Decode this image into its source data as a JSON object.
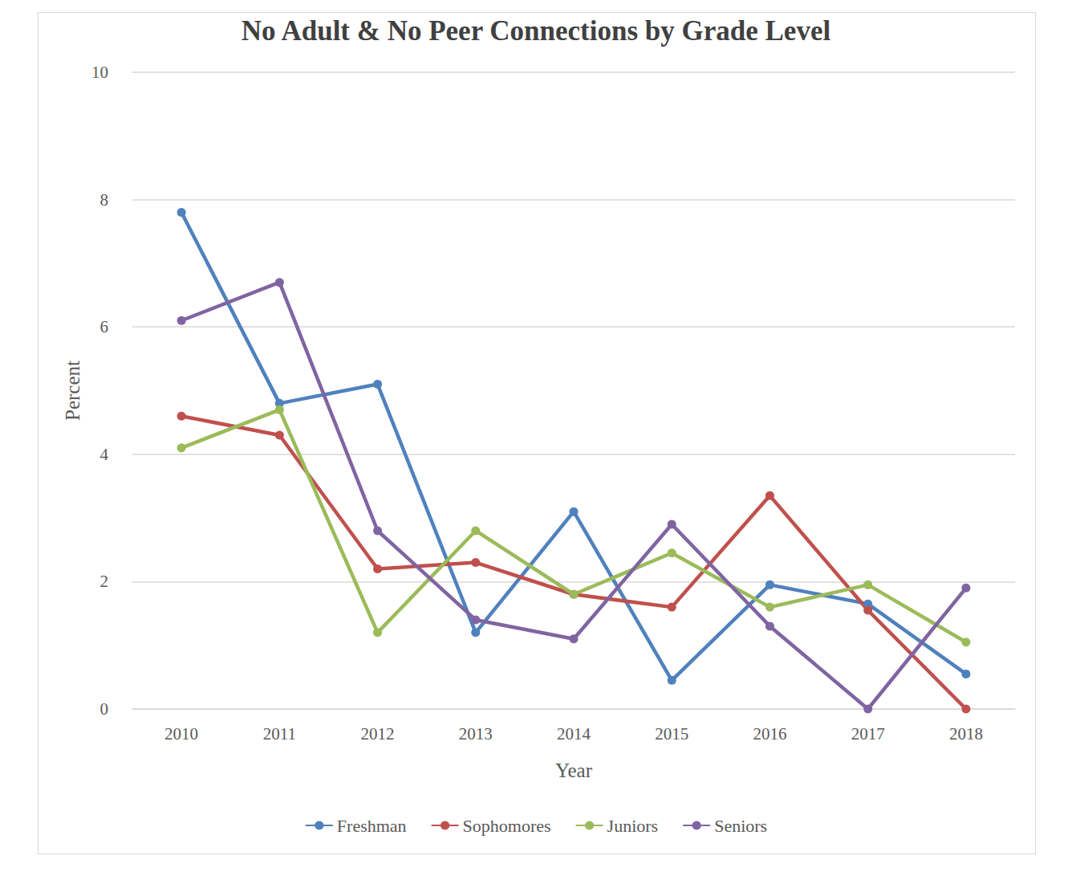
{
  "chart_data": {
    "type": "line",
    "title": "No Adult & No Peer Connections by Grade Level",
    "x_label": "Year",
    "y_label": "Percent",
    "categories": [
      "2010",
      "2011",
      "2012",
      "2013",
      "2014",
      "2015",
      "2016",
      "2017",
      "2018"
    ],
    "series": [
      {
        "name": "Freshman",
        "color": "#4f81bd",
        "values": [
          7.8,
          4.8,
          5.1,
          1.2,
          3.1,
          0.45,
          1.95,
          1.65,
          0.55
        ]
      },
      {
        "name": "Sophomores",
        "color": "#c0504d",
        "values": [
          4.6,
          4.3,
          2.2,
          2.3,
          1.8,
          1.6,
          3.35,
          1.55,
          0
        ]
      },
      {
        "name": "Juniors",
        "color": "#9bbb59",
        "values": [
          4.1,
          4.7,
          1.2,
          2.8,
          1.8,
          2.45,
          1.6,
          1.95,
          1.05
        ]
      },
      {
        "name": "Seniors",
        "color": "#8064a2",
        "values": [
          6.1,
          6.7,
          2.8,
          1.4,
          1.1,
          2.9,
          1.3,
          0,
          1.9
        ]
      }
    ],
    "ylim": [
      0,
      10
    ],
    "yticks": [
      0,
      2,
      4,
      6,
      8,
      10
    ],
    "grid": true,
    "legend": "bottom",
    "marker": "circle",
    "line_style": "solid"
  }
}
